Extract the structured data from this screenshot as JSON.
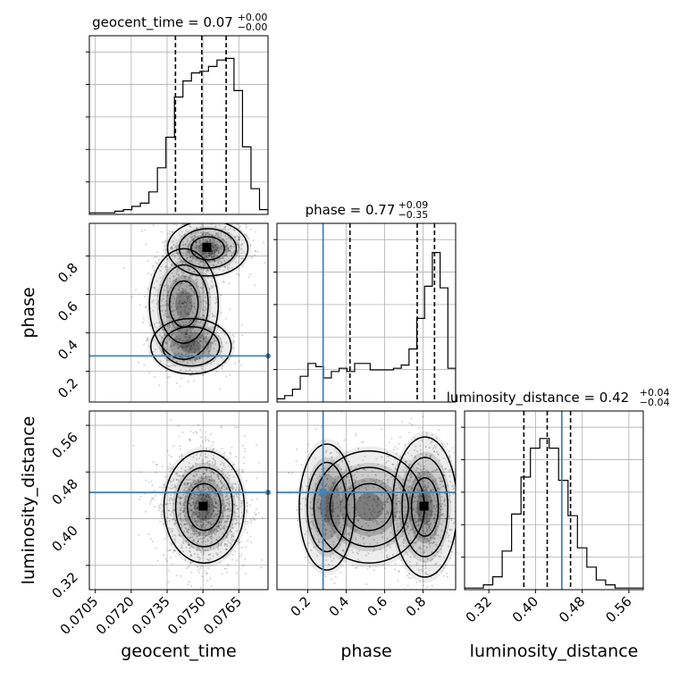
{
  "chart_data": {
    "type": "corner",
    "parameters": [
      "geocent_time",
      "phase",
      "luminosity_distance"
    ],
    "titles": [
      {
        "param": "geocent_time",
        "label": "geocent_time",
        "median": "0.07",
        "plus": "+0.00",
        "minus": "−0.00"
      },
      {
        "param": "phase",
        "label": "phase",
        "median": "0.77",
        "plus": "+0.09",
        "minus": "−0.35"
      },
      {
        "param": "luminosity_distance",
        "label": "luminosity_distance",
        "median": "0.42",
        "plus": "+0.04",
        "minus": "−0.04"
      }
    ],
    "axis_labels": {
      "x": [
        "geocent_time",
        "phase",
        "luminosity_distance"
      ],
      "y": [
        "phase",
        "luminosity_distance"
      ]
    },
    "ranges": {
      "geocent_time": [
        0.07025,
        0.07772
      ],
      "phase": [
        0.04,
        0.97
      ],
      "luminosity_distance": [
        0.2784,
        0.5846
      ]
    },
    "ticks": {
      "geocent_time": [
        "0.0705",
        "0.0720",
        "0.0735",
        "0.0750",
        "0.0765"
      ],
      "phase": [
        "0.2",
        "0.4",
        "0.6",
        "0.8"
      ],
      "luminosity_distance": [
        "0.32",
        "0.40",
        "0.48",
        "0.56"
      ]
    },
    "truths": {
      "phase": 0.28,
      "luminosity_distance": 0.445
    },
    "quantiles": {
      "geocent_time": [
        0.07385,
        0.07495,
        0.07597
      ],
      "phase": [
        0.42,
        0.77,
        0.86
      ],
      "luminosity_distance": [
        0.38,
        0.42,
        0.46
      ]
    },
    "histograms": {
      "geocent_time": [
        0.01,
        0.01,
        0.01,
        0.02,
        0.03,
        0.05,
        0.07,
        0.14,
        0.29,
        0.48,
        0.73,
        0.83,
        0.88,
        0.89,
        0.92,
        0.96,
        0.97,
        0.77,
        0.42,
        0.16,
        0.03
      ],
      "phase": [
        0.02,
        0.04,
        0.08,
        0.16,
        0.24,
        0.22,
        0.15,
        0.19,
        0.21,
        0.19,
        0.24,
        0.24,
        0.2,
        0.2,
        0.2,
        0.21,
        0.23,
        0.33,
        0.52,
        0.72,
        0.93,
        0.71,
        0.21
      ],
      "luminosity_distance": [
        0.01,
        0.01,
        0.03,
        0.08,
        0.24,
        0.47,
        0.7,
        0.88,
        0.94,
        0.88,
        0.68,
        0.46,
        0.26,
        0.14,
        0.06,
        0.03,
        0.01,
        0.01,
        0.01
      ]
    },
    "grid": true
  }
}
